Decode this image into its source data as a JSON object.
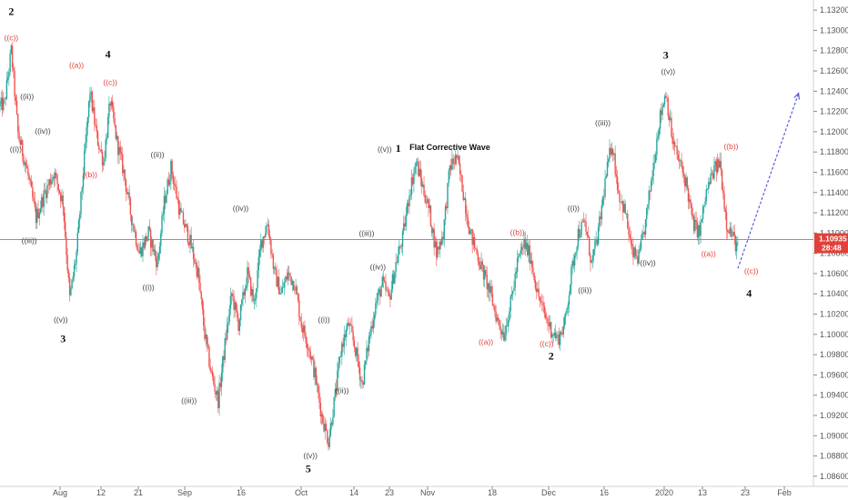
{
  "chart_data": {
    "type": "candlestick",
    "symbol_hint": "EURUSD",
    "y_axis": {
      "position": "right",
      "ylim": [
        1.085,
        1.133
      ],
      "ticks": [
        "1.13200",
        "1.13000",
        "1.12800",
        "1.12600",
        "1.12400",
        "1.12200",
        "1.12000",
        "1.11800",
        "1.11600",
        "1.11400",
        "1.11200",
        "1.11000",
        "1.10800",
        "1.10600",
        "1.10400",
        "1.10200",
        "1.10000",
        "1.09800",
        "1.09600",
        "1.09400",
        "1.09200",
        "1.09000",
        "1.08800",
        "1.08600"
      ]
    },
    "x_axis": {
      "ticks": [
        "Aug",
        "12",
        "21",
        "Sep",
        "16",
        "Oct",
        "14",
        "23",
        "Nov",
        "18",
        "Dec",
        "16",
        "2020",
        "13",
        "23",
        "Feb"
      ]
    },
    "current_price": {
      "value": "1.10935",
      "countdown": "28:48",
      "color": "#e0413a"
    },
    "price_line": 1.10935,
    "up_color": "#26a69a",
    "down_color": "#ef5350",
    "path_points": [
      {
        "t": 0,
        "p": 1.1225
      },
      {
        "t": 2,
        "p": 1.1228
      },
      {
        "t": 5,
        "p": 1.128
      },
      {
        "t": 8,
        "p": 1.1198
      },
      {
        "t": 12,
        "p": 1.1162
      },
      {
        "t": 16,
        "p": 1.1115
      },
      {
        "t": 20,
        "p": 1.114
      },
      {
        "t": 24,
        "p": 1.116
      },
      {
        "t": 28,
        "p": 1.113
      },
      {
        "t": 31,
        "p": 1.1035
      },
      {
        "t": 34,
        "p": 1.108
      },
      {
        "t": 37,
        "p": 1.116
      },
      {
        "t": 40,
        "p": 1.124
      },
      {
        "t": 43,
        "p": 1.1195
      },
      {
        "t": 46,
        "p": 1.117
      },
      {
        "t": 49,
        "p": 1.123
      },
      {
        "t": 52,
        "p": 1.119
      },
      {
        "t": 55,
        "p": 1.116
      },
      {
        "t": 58,
        "p": 1.112
      },
      {
        "t": 62,
        "p": 1.108
      },
      {
        "t": 66,
        "p": 1.11
      },
      {
        "t": 70,
        "p": 1.107
      },
      {
        "t": 73,
        "p": 1.113
      },
      {
        "t": 76,
        "p": 1.1165
      },
      {
        "t": 80,
        "p": 1.112
      },
      {
        "t": 84,
        "p": 1.1095
      },
      {
        "t": 88,
        "p": 1.106
      },
      {
        "t": 91,
        "p": 1.1
      },
      {
        "t": 94,
        "p": 1.096
      },
      {
        "t": 97,
        "p": 1.0935
      },
      {
        "t": 100,
        "p": 1.099
      },
      {
        "t": 103,
        "p": 1.104
      },
      {
        "t": 106,
        "p": 1.101
      },
      {
        "t": 110,
        "p": 1.106
      },
      {
        "t": 113,
        "p": 1.103
      },
      {
        "t": 116,
        "p": 1.109
      },
      {
        "t": 119,
        "p": 1.111
      },
      {
        "t": 122,
        "p": 1.106
      },
      {
        "t": 125,
        "p": 1.104
      },
      {
        "t": 128,
        "p": 1.106
      },
      {
        "t": 131,
        "p": 1.105
      },
      {
        "t": 134,
        "p": 1.101
      },
      {
        "t": 137,
        "p": 1.099
      },
      {
        "t": 140,
        "p": 1.096
      },
      {
        "t": 143,
        "p": 1.092
      },
      {
        "t": 146,
        "p": 1.0895
      },
      {
        "t": 149,
        "p": 1.094
      },
      {
        "t": 152,
        "p": 1.099
      },
      {
        "t": 155,
        "p": 1.101
      },
      {
        "t": 158,
        "p": 1.0985
      },
      {
        "t": 161,
        "p": 1.095
      },
      {
        "t": 164,
        "p": 1.0995
      },
      {
        "t": 167,
        "p": 1.103
      },
      {
        "t": 170,
        "p": 1.105
      },
      {
        "t": 173,
        "p": 1.1035
      },
      {
        "t": 176,
        "p": 1.107
      },
      {
        "t": 179,
        "p": 1.1095
      },
      {
        "t": 182,
        "p": 1.114
      },
      {
        "t": 185,
        "p": 1.117
      },
      {
        "t": 188,
        "p": 1.1145
      },
      {
        "t": 191,
        "p": 1.112
      },
      {
        "t": 194,
        "p": 1.108
      },
      {
        "t": 197,
        "p": 1.11
      },
      {
        "t": 200,
        "p": 1.1165
      },
      {
        "t": 203,
        "p": 1.1175
      },
      {
        "t": 206,
        "p": 1.114
      },
      {
        "t": 209,
        "p": 1.11
      },
      {
        "t": 212,
        "p": 1.108
      },
      {
        "t": 215,
        "p": 1.106
      },
      {
        "t": 218,
        "p": 1.104
      },
      {
        "t": 221,
        "p": 1.1015
      },
      {
        "t": 224,
        "p": 1.1
      },
      {
        "t": 227,
        "p": 1.103
      },
      {
        "t": 230,
        "p": 1.107
      },
      {
        "t": 233,
        "p": 1.109
      },
      {
        "t": 236,
        "p": 1.1075
      },
      {
        "t": 239,
        "p": 1.104
      },
      {
        "t": 242,
        "p": 1.102
      },
      {
        "t": 245,
        "p": 1.1005
      },
      {
        "t": 248,
        "p": 1.0995
      },
      {
        "t": 251,
        "p": 1.101
      },
      {
        "t": 254,
        "p": 1.106
      },
      {
        "t": 257,
        "p": 1.11
      },
      {
        "t": 260,
        "p": 1.111
      },
      {
        "t": 263,
        "p": 1.107
      },
      {
        "t": 266,
        "p": 1.11
      },
      {
        "t": 269,
        "p": 1.115
      },
      {
        "t": 272,
        "p": 1.119
      },
      {
        "t": 275,
        "p": 1.114
      },
      {
        "t": 278,
        "p": 1.112
      },
      {
        "t": 281,
        "p": 1.108
      },
      {
        "t": 284,
        "p": 1.1075
      },
      {
        "t": 287,
        "p": 1.111
      },
      {
        "t": 290,
        "p": 1.116
      },
      {
        "t": 293,
        "p": 1.121
      },
      {
        "t": 296,
        "p": 1.124
      },
      {
        "t": 299,
        "p": 1.119
      },
      {
        "t": 302,
        "p": 1.117
      },
      {
        "t": 305,
        "p": 1.115
      },
      {
        "t": 308,
        "p": 1.111
      },
      {
        "t": 311,
        "p": 1.11
      },
      {
        "t": 314,
        "p": 1.114
      },
      {
        "t": 317,
        "p": 1.116
      },
      {
        "t": 320,
        "p": 1.117
      },
      {
        "t": 323,
        "p": 1.111
      },
      {
        "t": 326,
        "p": 1.1095
      },
      {
        "t": 328,
        "p": 1.1085
      }
    ],
    "projection": {
      "from_t": 328,
      "from_p": 1.1065,
      "to_t": 355,
      "to_p": 1.1238,
      "color": "#5c5ce0"
    }
  },
  "wave_labels": {
    "black": [
      {
        "text": "2",
        "t": 5,
        "p": 1.1315
      },
      {
        "text": "4",
        "t": 48,
        "p": 1.1273
      },
      {
        "text": "3",
        "t": 28,
        "p": 1.0992
      },
      {
        "text": "1",
        "t": 177,
        "p": 1.118
      },
      {
        "text": "5",
        "t": 137,
        "p": 1.0864
      },
      {
        "text": "2",
        "t": 245,
        "p": 1.0975
      },
      {
        "text": "3",
        "t": 296,
        "p": 1.1272
      },
      {
        "text": "4",
        "t": 333,
        "p": 1.1037
      }
    ],
    "gray": [
      {
        "text": "((i))",
        "t": 7,
        "p": 1.118
      },
      {
        "text": "((ii))",
        "t": 12,
        "p": 1.1232
      },
      {
        "text": "((iii))",
        "t": 13,
        "p": 1.109
      },
      {
        "text": "((iv))",
        "t": 19,
        "p": 1.1198
      },
      {
        "text": "((v))",
        "t": 27,
        "p": 1.1012
      },
      {
        "text": "((ii))",
        "t": 70,
        "p": 1.1175
      },
      {
        "text": "((i))",
        "t": 66,
        "p": 1.1044
      },
      {
        "text": "((iii))",
        "t": 84,
        "p": 1.0932
      },
      {
        "text": "((iv))",
        "t": 107,
        "p": 1.1122
      },
      {
        "text": "((i))",
        "t": 144,
        "p": 1.1012
      },
      {
        "text": "((ii))",
        "t": 152,
        "p": 1.0942
      },
      {
        "text": "((v))",
        "t": 138,
        "p": 1.0878
      },
      {
        "text": "((iii))",
        "t": 163,
        "p": 1.1097
      },
      {
        "text": "((iv))",
        "t": 168,
        "p": 1.1064
      },
      {
        "text": "((v))",
        "t": 171,
        "p": 1.118
      },
      {
        "text": "((i))",
        "t": 255,
        "p": 1.1122
      },
      {
        "text": "((ii))",
        "t": 260,
        "p": 1.1041
      },
      {
        "text": "((iii))",
        "t": 268,
        "p": 1.1206
      },
      {
        "text": "((iv))",
        "t": 288,
        "p": 1.1068
      },
      {
        "text": "((v))",
        "t": 297,
        "p": 1.1257
      }
    ],
    "red": [
      {
        "text": "((c))",
        "t": 5,
        "p": 1.129
      },
      {
        "text": "((a))",
        "t": 34,
        "p": 1.1263
      },
      {
        "text": "((c))",
        "t": 49,
        "p": 1.1246
      },
      {
        "text": "((b))",
        "t": 40,
        "p": 1.1155
      },
      {
        "text": "((b))",
        "t": 230,
        "p": 1.1098
      },
      {
        "text": "((a))",
        "t": 216,
        "p": 1.099
      },
      {
        "text": "((c))",
        "t": 243,
        "p": 1.0988
      },
      {
        "text": "((b))",
        "t": 325,
        "p": 1.1183
      },
      {
        "text": "((a))",
        "t": 315,
        "p": 1.1077
      },
      {
        "text": "((c))",
        "t": 334,
        "p": 1.106
      }
    ],
    "note": {
      "text": "Flat Corrective Wave",
      "t": 200,
      "p": 1.1182
    }
  }
}
